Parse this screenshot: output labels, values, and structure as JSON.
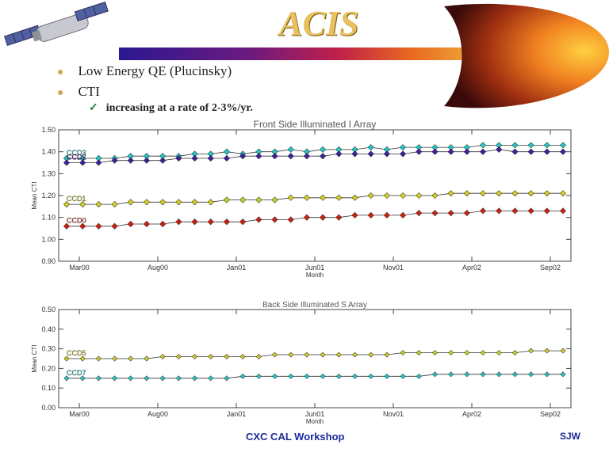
{
  "slide": {
    "title": "ACIS",
    "bullets": [
      "Low Energy QE (Plucinsky)",
      "CTI"
    ],
    "sub_bullet": "increasing at a rate of 2-3%/yr.",
    "footer": "CXC CAL Workshop",
    "initials": "SJW",
    "colors": {
      "title": "#e8c060",
      "footer": "#1a2a9a",
      "bullet_dot": "#c8a850",
      "check": "#2a7a2a"
    }
  },
  "chart_data": [
    {
      "type": "scatter",
      "title": "Front Side Illuminated I Array",
      "xlabel": "Month",
      "ylabel": "Mean CTI",
      "x_ticks": [
        "Mar00",
        "Aug00",
        "Jan01",
        "Jun01",
        "Nov01",
        "Apr02",
        "Sep02"
      ],
      "y_ticks": [
        "0.90",
        "1.00",
        "1.10",
        "1.20",
        "1.30",
        "1.40",
        "1.50"
      ],
      "ylim": [
        0.9,
        1.5
      ],
      "series": [
        {
          "name": "CCD3",
          "color": "#20c8c8",
          "values": [
            1.37,
            1.37,
            1.37,
            1.37,
            1.38,
            1.38,
            1.38,
            1.38,
            1.39,
            1.39,
            1.4,
            1.39,
            1.4,
            1.4,
            1.41,
            1.4,
            1.41,
            1.41,
            1.41,
            1.42,
            1.41,
            1.42,
            1.42,
            1.42,
            1.42,
            1.42,
            1.43,
            1.43,
            1.43,
            1.43,
            1.43,
            1.43
          ]
        },
        {
          "name": "CCD2",
          "color": "#4020a0",
          "values": [
            1.35,
            1.35,
            1.35,
            1.36,
            1.36,
            1.36,
            1.36,
            1.37,
            1.37,
            1.37,
            1.37,
            1.38,
            1.38,
            1.38,
            1.38,
            1.38,
            1.38,
            1.39,
            1.39,
            1.39,
            1.39,
            1.39,
            1.4,
            1.4,
            1.4,
            1.4,
            1.4,
            1.41,
            1.4,
            1.4,
            1.4,
            1.4
          ]
        },
        {
          "name": "CCD1",
          "color": "#d0d020",
          "values": [
            1.16,
            1.16,
            1.16,
            1.16,
            1.17,
            1.17,
            1.17,
            1.17,
            1.17,
            1.17,
            1.18,
            1.18,
            1.18,
            1.18,
            1.19,
            1.19,
            1.19,
            1.19,
            1.19,
            1.2,
            1.2,
            1.2,
            1.2,
            1.2,
            1.21,
            1.21,
            1.21,
            1.21,
            1.21,
            1.21,
            1.21,
            1.21
          ]
        },
        {
          "name": "CCD0",
          "color": "#d02010",
          "values": [
            1.06,
            1.06,
            1.06,
            1.06,
            1.07,
            1.07,
            1.07,
            1.08,
            1.08,
            1.08,
            1.08,
            1.08,
            1.09,
            1.09,
            1.09,
            1.1,
            1.1,
            1.1,
            1.11,
            1.11,
            1.11,
            1.11,
            1.12,
            1.12,
            1.12,
            1.12,
            1.13,
            1.13,
            1.13,
            1.13,
            1.13,
            1.13
          ]
        }
      ]
    },
    {
      "type": "scatter",
      "title": "Back Side Illuminated S Array",
      "xlabel": "Month",
      "ylabel": "Mean CTI",
      "x_ticks": [
        "Mar00",
        "Aug00",
        "Jan01",
        "Jun01",
        "Nov01",
        "Apr02",
        "Sep02"
      ],
      "y_ticks": [
        "0.00",
        "0.10",
        "0.20",
        "0.30",
        "0.40",
        "0.50"
      ],
      "ylim": [
        0.0,
        0.5
      ],
      "series": [
        {
          "name": "CCD5",
          "color": "#d0d020",
          "values": [
            0.25,
            0.25,
            0.25,
            0.25,
            0.25,
            0.25,
            0.26,
            0.26,
            0.26,
            0.26,
            0.26,
            0.26,
            0.26,
            0.27,
            0.27,
            0.27,
            0.27,
            0.27,
            0.27,
            0.27,
            0.27,
            0.28,
            0.28,
            0.28,
            0.28,
            0.28,
            0.28,
            0.28,
            0.28,
            0.29,
            0.29,
            0.29
          ]
        },
        {
          "name": "CCD7",
          "color": "#20c8c8",
          "values": [
            0.15,
            0.15,
            0.15,
            0.15,
            0.15,
            0.15,
            0.15,
            0.15,
            0.15,
            0.15,
            0.15,
            0.16,
            0.16,
            0.16,
            0.16,
            0.16,
            0.16,
            0.16,
            0.16,
            0.16,
            0.16,
            0.16,
            0.16,
            0.17,
            0.17,
            0.17,
            0.17,
            0.17,
            0.17,
            0.17,
            0.17,
            0.17
          ]
        }
      ]
    }
  ]
}
